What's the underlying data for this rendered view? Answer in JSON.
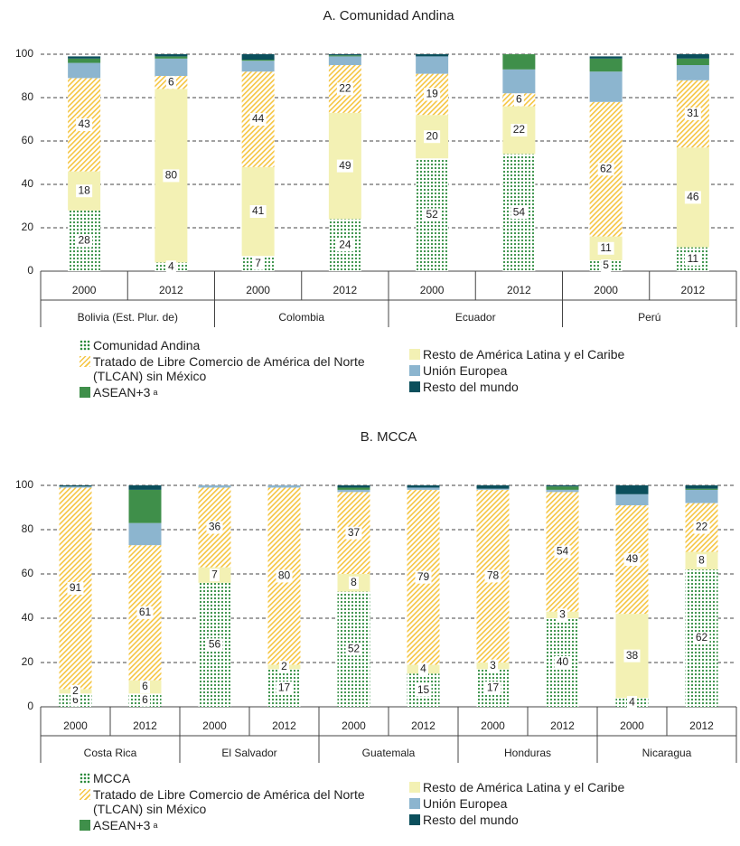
{
  "chart_data": [
    {
      "type": "bar",
      "stacked": true,
      "title": "A. Comunidad Andina",
      "categories": [
        "2000",
        "2012",
        "2000",
        "2012",
        "2000",
        "2012",
        "2000",
        "2012"
      ],
      "groups": [
        "Bolivia (Est. Plur. de)",
        "Colombia",
        "Ecuador",
        "Perú"
      ],
      "ylim": [
        0,
        100
      ],
      "yticks": [
        0,
        20,
        40,
        60,
        80,
        100
      ],
      "grid": true,
      "series": [
        {
          "name": "Comunidad Andina",
          "color": "#2e8b3e",
          "pattern": "dots",
          "labels": true,
          "values": [
            28,
            4,
            7,
            24,
            52,
            54,
            5,
            11
          ]
        },
        {
          "name": "Resto de América Latina y el Caribe",
          "color": "#f3f1b4",
          "labels": true,
          "values": [
            18,
            80,
            41,
            49,
            20,
            22,
            11,
            46
          ]
        },
        {
          "name": "Tratado de Libre Comercio de América del Norte (TLCAN) sin México",
          "color": "#f5c542",
          "pattern": "hatch",
          "labels": true,
          "values": [
            43,
            6,
            44,
            22,
            19,
            6,
            62,
            31
          ]
        },
        {
          "name": "Unión Europea",
          "color": "#8cb5cf",
          "values": [
            7,
            8,
            5,
            4,
            8,
            11,
            14,
            7
          ]
        },
        {
          "name": "ASEAN+3",
          "footnote_mark": "a",
          "color": "#3f8f4a",
          "values": [
            2,
            1,
            0.5,
            0.5,
            0,
            7,
            6,
            3
          ]
        },
        {
          "name": "Resto del mundo",
          "color": "#0b4f5c",
          "values": [
            1,
            1,
            2.5,
            0.5,
            1,
            0,
            1,
            2
          ]
        }
      ]
    },
    {
      "type": "bar",
      "stacked": true,
      "title": "B. MCCA",
      "categories": [
        "2000",
        "2012",
        "2000",
        "2012",
        "2000",
        "2012",
        "2000",
        "2012",
        "2000",
        "2012"
      ],
      "groups": [
        "Costa Rica",
        "El Salvador",
        "Guatemala",
        "Honduras",
        "Nicaragua"
      ],
      "ylim": [
        0,
        100
      ],
      "yticks": [
        0,
        20,
        40,
        60,
        80,
        100
      ],
      "grid": true,
      "series": [
        {
          "name": "MCCA",
          "color": "#2e8b3e",
          "pattern": "dots",
          "labels": true,
          "values": [
            6,
            6,
            56,
            17,
            52,
            15,
            17,
            40,
            4,
            62
          ]
        },
        {
          "name": "Resto de América Latina y el Caribe",
          "color": "#f3f1b4",
          "labels": true,
          "values": [
            2,
            6,
            7,
            2,
            8,
            4,
            3,
            3,
            38,
            8
          ]
        },
        {
          "name": "Tratado de Libre Comercio de América del Norte (TLCAN) sin México",
          "color": "#f5c542",
          "pattern": "hatch",
          "labels": true,
          "values": [
            91,
            61,
            36,
            80,
            37,
            79,
            78,
            54,
            49,
            22
          ]
        },
        {
          "name": "Unión Europea",
          "color": "#8cb5cf",
          "values": [
            0.5,
            10,
            1,
            1,
            1,
            1,
            0.5,
            1,
            5,
            6
          ]
        },
        {
          "name": "ASEAN+3",
          "footnote_mark": "a",
          "color": "#3f8f4a",
          "values": [
            0,
            15,
            0,
            0,
            1,
            0,
            0,
            1.5,
            0,
            0.5
          ]
        },
        {
          "name": "Resto del mundo",
          "color": "#0b4f5c",
          "values": [
            0.5,
            2,
            0,
            0,
            1,
            1,
            1.5,
            0.5,
            4,
            1.5
          ]
        }
      ]
    }
  ]
}
